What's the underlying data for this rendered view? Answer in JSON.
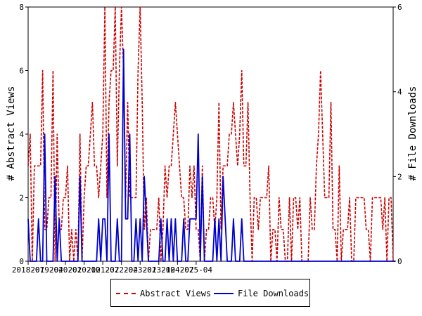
{
  "chart_data": {
    "type": "line",
    "title": "",
    "xlabel": "",
    "ylabel": "# Abstract Views",
    "y2label": "# File Downloads",
    "x_tick_labels": [
      "2018-07",
      "2019-04",
      "2020-01",
      "2020-10",
      "2021-07",
      "2022-04",
      "2023-01",
      "2023-10",
      "2024-07",
      "2025-04"
    ],
    "x_tick_index": [
      0,
      9,
      18,
      27,
      36,
      45,
      54,
      63,
      72,
      81
    ],
    "ylim": [
      0,
      8
    ],
    "y_ticks": [
      0,
      2,
      4,
      6,
      8
    ],
    "y2lim": [
      0,
      6
    ],
    "y2_ticks": [
      0,
      2,
      4,
      6
    ],
    "grid": false,
    "legend_position": "bottom",
    "series": [
      {
        "name": "Abstract Views",
        "axis": "left",
        "color": "#cc0000",
        "style": "dashed",
        "values": [
          3,
          4,
          0,
          3,
          3,
          3,
          3,
          6,
          1,
          1,
          2,
          2,
          6,
          0,
          4,
          1,
          1,
          2,
          2,
          3,
          0,
          1,
          0,
          1,
          0,
          4,
          0,
          2,
          3,
          3,
          4,
          5,
          3,
          3,
          2,
          3,
          4,
          8,
          2,
          5,
          6,
          6,
          8,
          3,
          6,
          8,
          6,
          2,
          5,
          2,
          2,
          2,
          2,
          6,
          8,
          5,
          1,
          2,
          0,
          1,
          1,
          1,
          1,
          2,
          0,
          1,
          3,
          2,
          3,
          3,
          4,
          5,
          4,
          3,
          2,
          2,
          1,
          1,
          3,
          2,
          3,
          1,
          1,
          0,
          3,
          0,
          1,
          1,
          2,
          2,
          1,
          2,
          5,
          1,
          3,
          3,
          3,
          4,
          4,
          5,
          4,
          3,
          4,
          6,
          3,
          3,
          5,
          2,
          0,
          2,
          2,
          1,
          2,
          2,
          2,
          2,
          3,
          0,
          1,
          1,
          0,
          2,
          1,
          1,
          0,
          0,
          2,
          0,
          2,
          2,
          1,
          2,
          0,
          0,
          0,
          0,
          2,
          1,
          1,
          3,
          4,
          6,
          4,
          2,
          2,
          2,
          5,
          1,
          1,
          0,
          3,
          0,
          1,
          1,
          1,
          2,
          0,
          0,
          2,
          2,
          2,
          2,
          2,
          1,
          1,
          0,
          2,
          2,
          2,
          2,
          2,
          1,
          2,
          0,
          2,
          2,
          0
        ]
      },
      {
        "name": "File Downloads",
        "axis": "right",
        "color": "#0000cc",
        "style": "solid",
        "values": [
          1,
          0,
          0,
          0,
          0,
          1,
          0,
          0,
          3,
          0,
          0,
          0,
          0,
          2,
          0,
          1,
          0,
          0,
          0,
          0,
          0,
          0,
          0,
          0,
          0,
          2,
          0,
          0,
          0,
          0,
          0,
          0,
          0,
          0,
          1,
          0,
          1,
          1,
          0,
          3,
          0,
          0,
          0,
          1,
          0,
          0,
          5,
          1,
          1,
          3,
          0,
          0,
          1,
          0,
          1,
          0,
          2,
          1,
          0,
          0,
          0,
          0,
          0,
          0,
          1,
          0,
          0,
          1,
          0,
          1,
          0,
          1,
          0,
          0,
          0,
          1,
          0,
          0,
          1,
          1,
          1,
          1,
          3,
          0,
          2,
          0,
          0,
          0,
          0,
          0,
          1,
          0,
          1,
          0,
          2,
          1,
          0,
          0,
          0,
          1,
          0,
          0,
          0,
          1,
          0,
          0,
          0,
          0,
          0,
          0,
          0,
          0,
          0,
          0,
          0,
          0,
          0,
          0,
          0,
          0,
          0,
          0,
          0,
          0,
          0,
          0,
          0,
          0,
          0,
          0,
          0,
          0,
          0,
          0,
          0,
          0,
          0,
          0,
          0,
          0,
          0,
          0,
          0,
          0,
          0,
          0,
          0,
          0,
          0,
          0,
          0,
          0,
          0,
          0,
          0,
          0,
          0,
          0,
          0,
          0,
          0,
          0,
          0,
          0,
          0,
          0,
          0,
          0,
          0,
          0,
          0,
          0,
          0,
          0,
          0,
          0,
          0,
          0
        ]
      }
    ]
  },
  "legend": {
    "items": [
      {
        "label": "Abstract Views",
        "color": "#cc0000"
      },
      {
        "label": "File Downloads",
        "color": "#0000cc"
      }
    ]
  }
}
